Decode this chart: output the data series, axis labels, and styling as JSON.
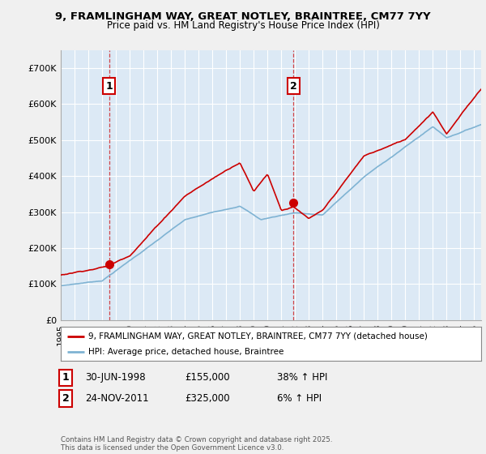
{
  "title_line1": "9, FRAMLINGHAM WAY, GREAT NOTLEY, BRAINTREE, CM77 7YY",
  "title_line2": "Price paid vs. HM Land Registry's House Price Index (HPI)",
  "legend_line1": "9, FRAMLINGHAM WAY, GREAT NOTLEY, BRAINTREE, CM77 7YY (detached house)",
  "legend_line2": "HPI: Average price, detached house, Braintree",
  "footer": "Contains HM Land Registry data © Crown copyright and database right 2025.\nThis data is licensed under the Open Government Licence v3.0.",
  "annotation1_label": "1",
  "annotation1_date": "30-JUN-1998",
  "annotation1_price": "£155,000",
  "annotation1_hpi": "38% ↑ HPI",
  "annotation2_label": "2",
  "annotation2_date": "24-NOV-2011",
  "annotation2_price": "£325,000",
  "annotation2_hpi": "6% ↑ HPI",
  "line1_color": "#cc0000",
  "line2_color": "#7fb3d3",
  "plot_bg_color": "#dce9f5",
  "fig_bg_color": "#f0f0f0",
  "grid_color": "#ffffff",
  "ylim": [
    0,
    750000
  ],
  "yticks": [
    0,
    100000,
    200000,
    300000,
    400000,
    500000,
    600000,
    700000
  ],
  "ytick_labels": [
    "£0",
    "£100K",
    "£200K",
    "£300K",
    "£400K",
    "£500K",
    "£600K",
    "£700K"
  ],
  "purchase1_year": 1998.5,
  "purchase1_price": 155000,
  "purchase2_year": 2011.9,
  "purchase2_price": 325000
}
